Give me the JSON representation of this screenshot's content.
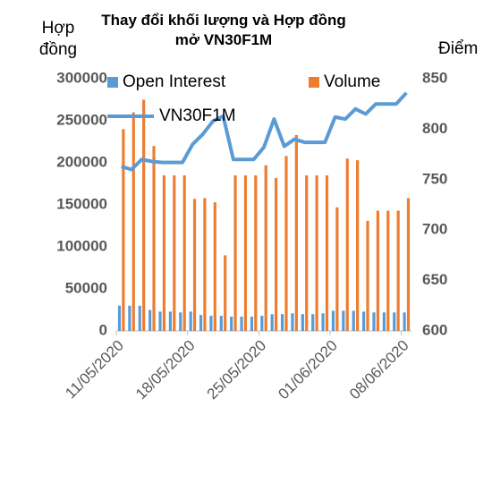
{
  "chart_data": {
    "type": "bar-line",
    "title": "Thay đổi khối lượng và Hợp đồng mở VN30F1M",
    "y_label": "Hợp đồng",
    "y2_label": "Điểm",
    "categories": [
      "11/05/2020",
      null,
      null,
      null,
      null,
      null,
      null,
      "18/05/2020",
      null,
      null,
      null,
      null,
      null,
      null,
      "25/05/2020",
      null,
      null,
      null,
      null,
      null,
      null,
      "01/06/2020",
      null,
      null,
      null,
      null,
      null,
      null,
      "08/06/2020"
    ],
    "series": [
      {
        "name": "Open Interest",
        "type": "bar",
        "color": "#5b9bd5",
        "values": [
          30000,
          30000,
          30000,
          25000,
          23000,
          23000,
          22000,
          23000,
          19000,
          18000,
          18000,
          17000,
          17000,
          17000,
          18000,
          20000,
          20000,
          21000,
          20000,
          20000,
          21000,
          24000,
          24000,
          24000,
          23000,
          22000,
          22000,
          22000,
          22000
        ]
      },
      {
        "name": "Volume",
        "type": "bar",
        "color": "#ed7d31",
        "values": [
          240000,
          260000,
          275000,
          220000,
          185000,
          185000,
          185000,
          157000,
          158000,
          153000,
          90000,
          185000,
          185000,
          185000,
          197000,
          182000,
          208000,
          233000,
          185000,
          185000,
          185000,
          147000,
          205000,
          203000,
          131000,
          143000,
          143000,
          143000,
          158000
        ]
      },
      {
        "name": "VN30F1M",
        "type": "line",
        "axis": "y2",
        "color": "#5b9bd5",
        "values": [
          763,
          760,
          770,
          768,
          767,
          767,
          767,
          785,
          795,
          808,
          813,
          770,
          770,
          770,
          782,
          810,
          783,
          790,
          787,
          787,
          787,
          812,
          810,
          820,
          815,
          825,
          825,
          825,
          836
        ]
      }
    ],
    "ylim": [
      0,
      300000
    ],
    "yticks": [
      0,
      50000,
      100000,
      150000,
      200000,
      250000,
      300000
    ],
    "y2lim": [
      600,
      850
    ],
    "y2ticks": [
      600,
      650,
      700,
      750,
      800,
      850
    ],
    "legend": "top"
  }
}
